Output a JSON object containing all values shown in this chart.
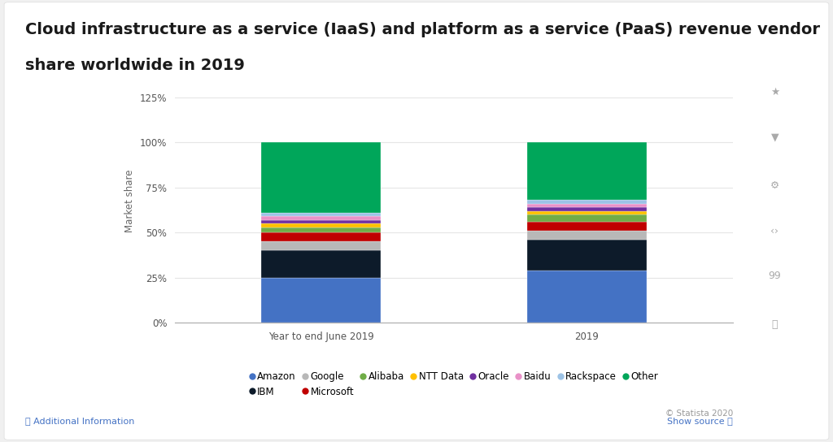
{
  "categories": [
    "Year to end June 2019",
    "2019"
  ],
  "vendors": [
    "Amazon",
    "IBM",
    "Google",
    "Microsoft",
    "Alibaba",
    "NTT Data",
    "Oracle",
    "Baidu",
    "Rackspace",
    "Other"
  ],
  "colors": [
    "#4472C4",
    "#0D1B2A",
    "#B8B8B8",
    "#C00000",
    "#70AD47",
    "#FFC000",
    "#7030A0",
    "#E991C8",
    "#9DC3E6",
    "#00A65A"
  ],
  "bar1_values": [
    25,
    15,
    5,
    5,
    3,
    2,
    2,
    2,
    2,
    39
  ],
  "bar2_values": [
    29,
    17,
    5,
    5,
    4,
    2,
    2,
    2,
    2,
    32
  ],
  "title_line1": "Cloud infrastructure as a service (IaaS) and platform as a service (PaaS) revenue vendor",
  "title_line2": "share worldwide in 2019",
  "ylabel": "Market share",
  "yticks": [
    0,
    25,
    50,
    75,
    100,
    125
  ],
  "ytick_labels": [
    "0%",
    "25%",
    "50%",
    "75%",
    "100%",
    "125%"
  ],
  "ylim": [
    0,
    135
  ],
  "outer_bg": "#F0F0F0",
  "card_bg": "#FFFFFF",
  "plot_bg": "#FFFFFF",
  "title_fontsize": 14,
  "axis_fontsize": 8.5,
  "legend_fontsize": 8.5,
  "bar_width": 0.45,
  "copyright": "© Statista 2020"
}
